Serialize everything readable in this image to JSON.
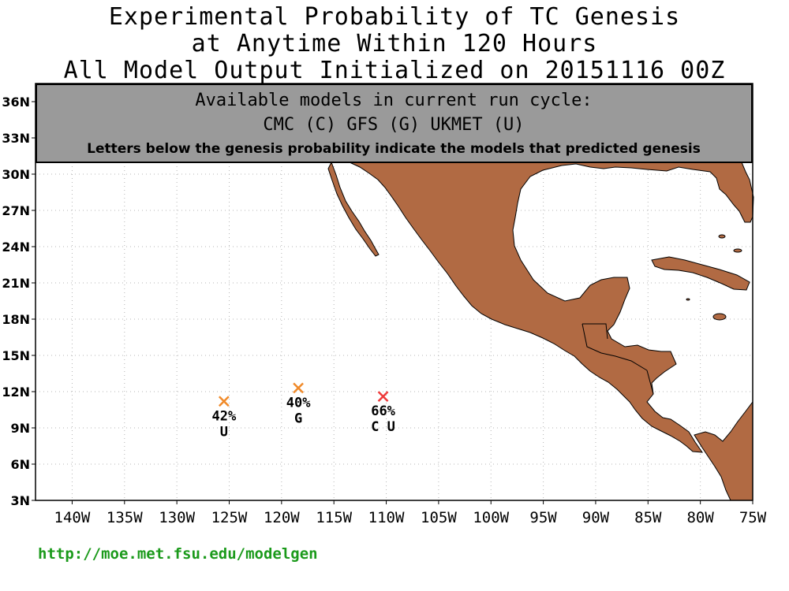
{
  "title": {
    "line1": "Experimental Probability of TC Genesis",
    "line2": "at Anytime Within 120 Hours",
    "line3": "All Model Output Initialized on 20151116 00Z"
  },
  "info_box": {
    "line1": "Available models in current run cycle:",
    "line2": "CMC (C) GFS (G)  UKMET (U)",
    "line3": "Letters below the genesis probability indicate the models that predicted genesis"
  },
  "axes": {
    "lat_labels": [
      "3N",
      "6N",
      "9N",
      "12N",
      "15N",
      "18N",
      "21N",
      "24N",
      "27N",
      "30N",
      "33N",
      "36N"
    ],
    "lat_values": [
      3,
      6,
      9,
      12,
      15,
      18,
      21,
      24,
      27,
      30,
      33,
      36
    ],
    "lon_labels": [
      "140W",
      "135W",
      "130W",
      "125W",
      "120W",
      "115W",
      "110W",
      "105W",
      "100W",
      "95W",
      "90W",
      "85W",
      "80W",
      "75W"
    ],
    "lon_values": [
      -140,
      -135,
      -130,
      -125,
      -120,
      -115,
      -110,
      -105,
      -100,
      -95,
      -90,
      -85,
      -80,
      -75
    ],
    "lon_range": [
      -143.5,
      -75
    ],
    "lat_range": [
      3,
      37.5
    ],
    "grid": true
  },
  "markers": [
    {
      "lon": -125.5,
      "lat": 11.2,
      "prob": "42%",
      "models": "U",
      "color": "#f08a2a"
    },
    {
      "lon": -118.4,
      "lat": 12.3,
      "prob": "40%",
      "models": "G",
      "color": "#f08a2a"
    },
    {
      "lon": -110.3,
      "lat": 11.6,
      "prob": "66%",
      "models": "C U",
      "color": "#ee3a3a"
    }
  ],
  "colors": {
    "land": "#b16a43",
    "info_box": "#9a9a9a",
    "url": "#1b9a1b"
  },
  "footer_url": "http://moe.met.fsu.edu/modelgen"
}
